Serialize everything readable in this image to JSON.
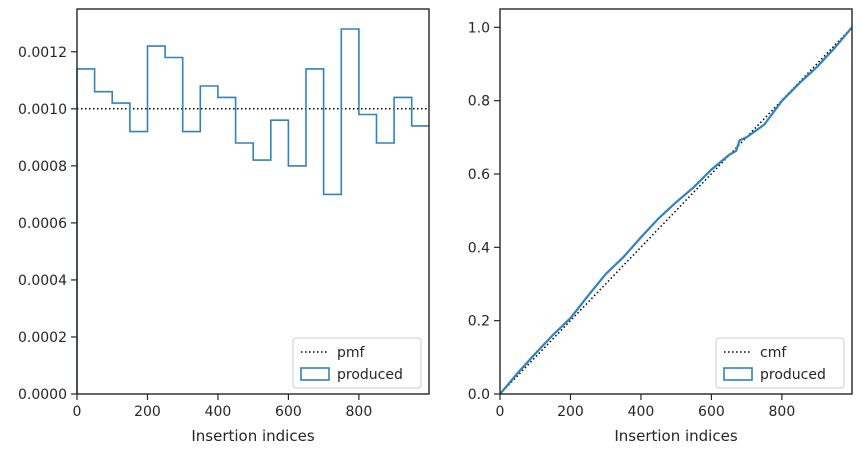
{
  "chart_data": [
    {
      "type": "step",
      "xlabel": "Insertion indices",
      "ylabel": "",
      "xlim": [
        0,
        999
      ],
      "ylim": [
        0,
        0.00135
      ],
      "xticks": [
        0,
        200,
        400,
        600,
        800
      ],
      "xtick_labels": [
        "0",
        "200",
        "400",
        "600",
        "800"
      ],
      "yticks": [
        0,
        0.0002,
        0.0004,
        0.0006,
        0.0008,
        0.001,
        0.0012
      ],
      "ytick_labels": [
        "0.0000",
        "0.0002",
        "0.0004",
        "0.0006",
        "0.0008",
        "0.0010",
        "0.0012"
      ],
      "legend_position": "lower-right",
      "series": [
        {
          "name": "pmf",
          "style": "dotted",
          "color": "#000000",
          "x": [
            0,
            999
          ],
          "values": [
            0.001,
            0.001
          ]
        },
        {
          "name": "produced",
          "style": "step-histogram",
          "color": "#3182bd",
          "bin_edges": [
            0,
            50,
            100,
            150,
            200,
            250,
            300,
            350,
            400,
            450,
            500,
            550,
            600,
            650,
            700,
            750,
            800,
            850,
            900,
            950,
            999
          ],
          "values": [
            0.00114,
            0.00106,
            0.00102,
            0.00092,
            0.00122,
            0.00118,
            0.00092,
            0.00108,
            0.00104,
            0.00088,
            0.00082,
            0.00096,
            0.0008,
            0.00114,
            0.0007,
            0.00128,
            0.00098,
            0.00088,
            0.00104,
            0.00094
          ]
        }
      ]
    },
    {
      "type": "line",
      "xlabel": "Insertion indices",
      "ylabel": "",
      "xlim": [
        0,
        999
      ],
      "ylim": [
        0,
        1.05
      ],
      "xticks": [
        0,
        200,
        400,
        600,
        800
      ],
      "xtick_labels": [
        "0",
        "200",
        "400",
        "600",
        "800"
      ],
      "yticks": [
        0,
        0.2,
        0.4,
        0.6,
        0.8,
        1.0
      ],
      "ytick_labels": [
        "0.0",
        "0.2",
        "0.4",
        "0.6",
        "0.8",
        "1.0"
      ],
      "legend_position": "lower-right",
      "series": [
        {
          "name": "cmf",
          "style": "dotted",
          "color": "#000000",
          "x": [
            0,
            999
          ],
          "values": [
            0,
            1
          ]
        },
        {
          "name": "produced",
          "style": "solid",
          "color": "#3182bd",
          "x": [
            0,
            50,
            100,
            150,
            200,
            250,
            300,
            350,
            400,
            450,
            500,
            550,
            600,
            650,
            670,
            680,
            700,
            750,
            800,
            850,
            900,
            950,
            999
          ],
          "values": [
            0,
            0.057,
            0.11,
            0.161,
            0.207,
            0.268,
            0.327,
            0.373,
            0.427,
            0.479,
            0.523,
            0.564,
            0.612,
            0.652,
            0.663,
            0.692,
            0.7,
            0.735,
            0.799,
            0.848,
            0.892,
            0.944,
            1.0
          ]
        }
      ]
    }
  ]
}
